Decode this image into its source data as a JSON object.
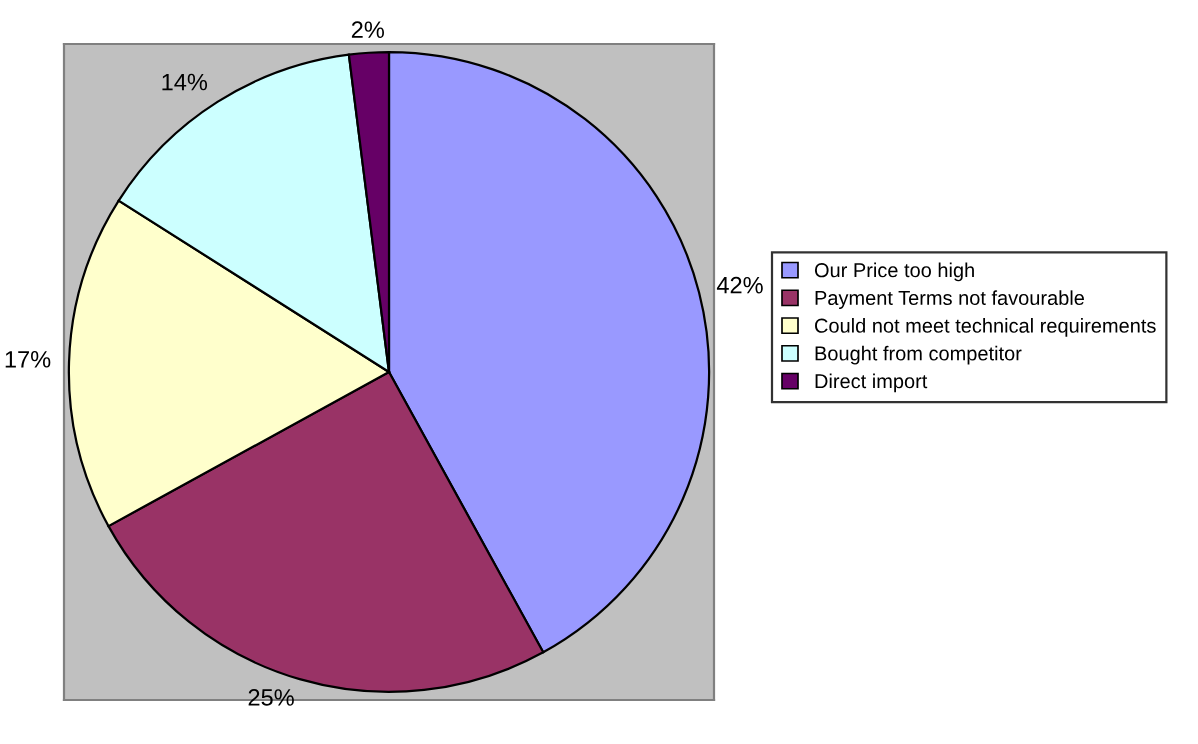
{
  "chart_data": {
    "type": "pie",
    "categories": [
      "Our Price too high",
      "Payment Terms not favourable",
      "Could not meet technical requirements",
      "Bought from competitor",
      "Direct import"
    ],
    "values": [
      42,
      25,
      17,
      14,
      2
    ],
    "colors": [
      "#9999ff",
      "#993366",
      "#ffffcc",
      "#ccffff",
      "#660066"
    ],
    "value_labels": [
      "42%",
      "25%",
      "17%",
      "14%",
      "2%"
    ],
    "legend": "right"
  }
}
